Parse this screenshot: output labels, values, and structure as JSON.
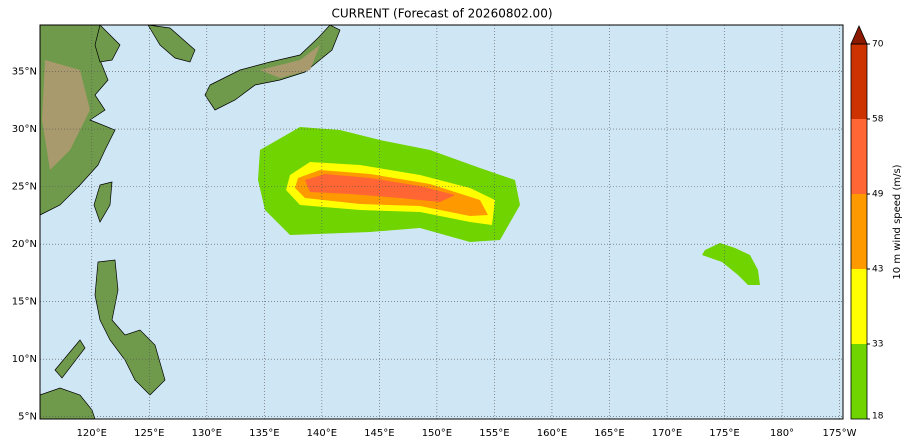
{
  "title": "CURRENT (Forecast of 20260802.00)",
  "map": {
    "lon_ticks": [
      {
        "value": 120,
        "label": "120°E"
      },
      {
        "value": 125,
        "label": "125°E"
      },
      {
        "value": 130,
        "label": "130°E"
      },
      {
        "value": 135,
        "label": "135°E"
      },
      {
        "value": 140,
        "label": "140°E"
      },
      {
        "value": 145,
        "label": "145°E"
      },
      {
        "value": 150,
        "label": "150°E"
      },
      {
        "value": 155,
        "label": "155°E"
      },
      {
        "value": 160,
        "label": "160°E"
      },
      {
        "value": 165,
        "label": "165°E"
      },
      {
        "value": 170,
        "label": "170°E"
      },
      {
        "value": 175,
        "label": "175°E"
      },
      {
        "value": 180,
        "label": "180°"
      },
      {
        "value": 185,
        "label": "175°W"
      }
    ],
    "lat_ticks": [
      {
        "value": 5,
        "label": "5°N"
      },
      {
        "value": 10,
        "label": "10°N"
      },
      {
        "value": 15,
        "label": "15°N"
      },
      {
        "value": 20,
        "label": "20°N"
      },
      {
        "value": 25,
        "label": "25°N"
      },
      {
        "value": 30,
        "label": "30°N"
      },
      {
        "value": 35,
        "label": "35°N"
      }
    ],
    "lonlim": [
      115.5,
      185.3
    ],
    "latlim": [
      4.8,
      39.05
    ]
  },
  "colorbar": {
    "label": "10 m wind speed (m/s)",
    "levels": [
      18,
      33,
      43,
      49,
      58,
      70
    ],
    "colors": [
      "#6fd400",
      "#ffff00",
      "#ff9900",
      "#ff6633",
      "#cc3300"
    ],
    "extend_color": "#8b1a00"
  }
}
